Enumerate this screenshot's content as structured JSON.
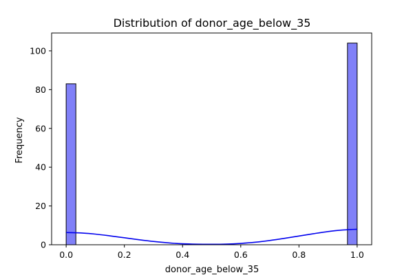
{
  "chart_data": {
    "type": "bar",
    "title": "Distribution of donor_age_below_35",
    "xlabel": "donor_age_below_35",
    "ylabel": "Frequency",
    "xlim": [
      -0.05,
      1.05
    ],
    "ylim": [
      0,
      109.2
    ],
    "x_ticks": [
      0.0,
      0.2,
      0.4,
      0.6,
      0.8,
      1.0
    ],
    "x_tick_labels": [
      "0.0",
      "0.2",
      "0.4",
      "0.6",
      "0.8",
      "1.0"
    ],
    "y_ticks": [
      0,
      20,
      40,
      60,
      80,
      100
    ],
    "y_tick_labels": [
      "0",
      "20",
      "40",
      "60",
      "80",
      "100"
    ],
    "bars": [
      {
        "x0": 0.0,
        "x1": 0.0333,
        "value": 83
      },
      {
        "x0": 0.9667,
        "x1": 1.0,
        "value": 104
      }
    ],
    "kde": {
      "x": [
        0.0,
        0.05,
        0.1,
        0.15,
        0.2,
        0.25,
        0.3,
        0.35,
        0.4,
        0.45,
        0.5,
        0.55,
        0.6,
        0.65,
        0.7,
        0.75,
        0.8,
        0.85,
        0.9,
        0.95,
        1.0
      ],
      "y": [
        6.3,
        6.1,
        5.5,
        4.6,
        3.6,
        2.6,
        1.7,
        1.0,
        0.5,
        0.3,
        0.25,
        0.35,
        0.7,
        1.3,
        2.2,
        3.3,
        4.5,
        5.7,
        6.8,
        7.6,
        8.0
      ]
    },
    "colors": {
      "bar_fill": "#8080f8",
      "bar_edge": "#000000",
      "kde_line": "#0000ee"
    },
    "grid": false
  }
}
